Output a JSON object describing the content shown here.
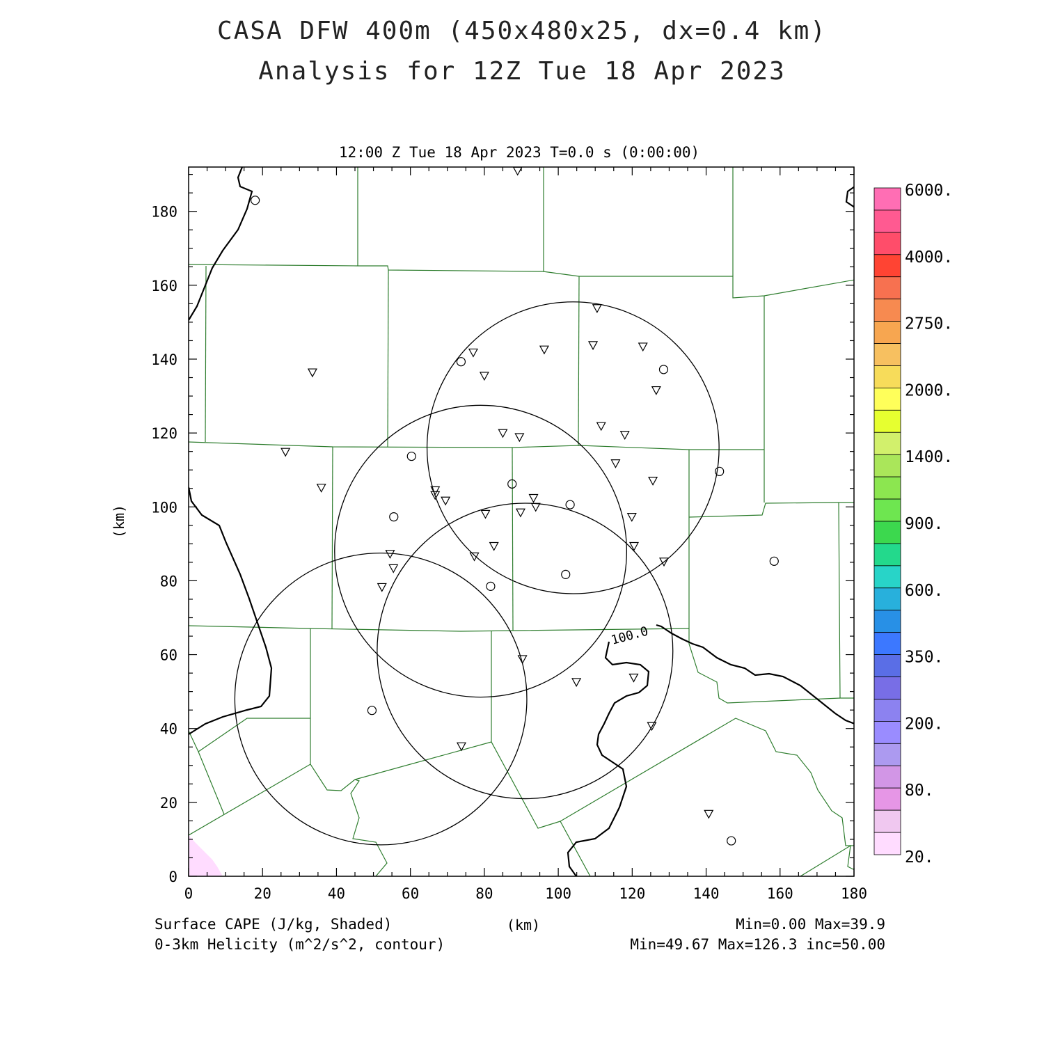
{
  "title_line1": "CASA DFW 400m (450x480x25, dx=0.4 km)",
  "title_line2": "Analysis for 12Z Tue 18 Apr 2023",
  "subtitle": "12:00 Z Tue 18 Apr 2023   T=0.0 s (0:00:00)",
  "axes": {
    "x_label": "(km)",
    "y_label": "(km)",
    "x_range": [
      0,
      180
    ],
    "y_range": [
      0,
      192
    ],
    "x_ticks": [
      "0",
      "20",
      "40",
      "60",
      "80",
      "100",
      "120",
      "140",
      "160",
      "180"
    ],
    "y_ticks": [
      "0",
      "20",
      "40",
      "60",
      "80",
      "100",
      "120",
      "140",
      "160",
      "180"
    ]
  },
  "colorbar": {
    "labels": [
      "6000.",
      "4000.",
      "2750.",
      "2000.",
      "1400.",
      "900.",
      "600.",
      "350.",
      "200.",
      "80.",
      "20."
    ],
    "colors": [
      "#ff6eb4",
      "#ff5a91",
      "#ff4d6a",
      "#ff4433",
      "#f77150",
      "#f78a50",
      "#f7a650",
      "#f7c060",
      "#f7dc5a",
      "#ffff5a",
      "#e6ff30",
      "#d2f06c",
      "#aae65a",
      "#8ce650",
      "#6ee650",
      "#3cd84e",
      "#23d98c",
      "#28d4c8",
      "#28b0dc",
      "#2890e6",
      "#3c78ff",
      "#5a6ee6",
      "#786ee6",
      "#8c82f0",
      "#9a8cff",
      "#ac9af0",
      "#d296e6",
      "#e696e6",
      "#f0c8f0",
      "#ffdcff"
    ]
  },
  "field": {
    "cape_name": "Surface CAPE (J/kg, Shaded)",
    "helicity_name": "0-3km Helicity (m^2/s^2, contour)",
    "cape_stats": "Min=0.00 Max=39.9",
    "helicity_stats": "Min=49.67 Max=126.3 inc=50.00",
    "contour_label": "100.0"
  },
  "radar_rings_km": [
    {
      "cx": 52,
      "cy": 48,
      "r": 39.5
    },
    {
      "cx": 79,
      "cy": 88,
      "r": 39.5
    },
    {
      "cx": 91,
      "cy": 61,
      "r": 40
    },
    {
      "cx": 104,
      "cy": 116,
      "r": 39.5
    }
  ],
  "stations_circle_km": [
    [
      18,
      183
    ],
    [
      73.7,
      139.3
    ],
    [
      60.3,
      113.7
    ],
    [
      55.5,
      97.3
    ],
    [
      87.5,
      106.2
    ],
    [
      103.2,
      100.6
    ],
    [
      81.7,
      78.5
    ],
    [
      102,
      81.7
    ],
    [
      143.6,
      109.6
    ],
    [
      128.5,
      137.2
    ],
    [
      158.4,
      85.3
    ],
    [
      49.6,
      44.9
    ],
    [
      146.8,
      9.6
    ]
  ],
  "stations_triangle_km": [
    [
      89,
      191
    ],
    [
      33.5,
      136.4
    ],
    [
      26.2,
      114.9
    ],
    [
      35.9,
      105.2
    ],
    [
      77,
      141.8
    ],
    [
      80,
      135.5
    ],
    [
      96.2,
      142.6
    ],
    [
      109.4,
      143.8
    ],
    [
      110.5,
      153.8
    ],
    [
      122.9,
      143.4
    ],
    [
      126.5,
      131.6
    ],
    [
      111.6,
      121.9
    ],
    [
      118,
      119.5
    ],
    [
      85,
      120
    ],
    [
      89.5,
      118.9
    ],
    [
      66.7,
      104.5
    ],
    [
      69.5,
      101.7
    ],
    [
      66.7,
      103.2
    ],
    [
      80.3,
      98.1
    ],
    [
      89.8,
      98.5
    ],
    [
      93.9,
      100
    ],
    [
      93.3,
      102.4
    ],
    [
      115.5,
      111.8
    ],
    [
      125.6,
      107.1
    ],
    [
      119.9,
      97.3
    ],
    [
      54.5,
      87.3
    ],
    [
      55.4,
      83.4
    ],
    [
      52.3,
      78.3
    ],
    [
      77.3,
      86.6
    ],
    [
      82.6,
      89.4
    ],
    [
      120.5,
      89.4
    ],
    [
      128.6,
      85.2
    ],
    [
      90.3,
      58.8
    ],
    [
      104.9,
      52.6
    ],
    [
      120.4,
      53.8
    ],
    [
      125.3,
      40.7
    ],
    [
      73.8,
      35.2
    ],
    [
      140.7,
      16.9
    ]
  ]
}
